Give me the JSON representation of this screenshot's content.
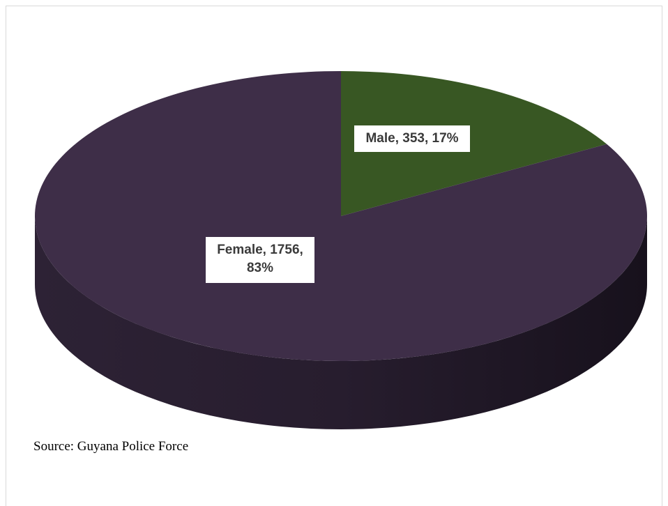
{
  "chart_data": {
    "type": "pie",
    "style": "3d",
    "title": "",
    "slices": [
      {
        "label": "Male",
        "value": 353,
        "percent": 17,
        "color": "#385723",
        "data_label": "Male, 353, 17%"
      },
      {
        "label": "Female",
        "value": 1756,
        "percent": 83,
        "color": "#3e2e48",
        "data_label": "Female, 1756, 83%"
      }
    ],
    "legend": "none"
  },
  "source_text": "Source: Guyana Police Force"
}
